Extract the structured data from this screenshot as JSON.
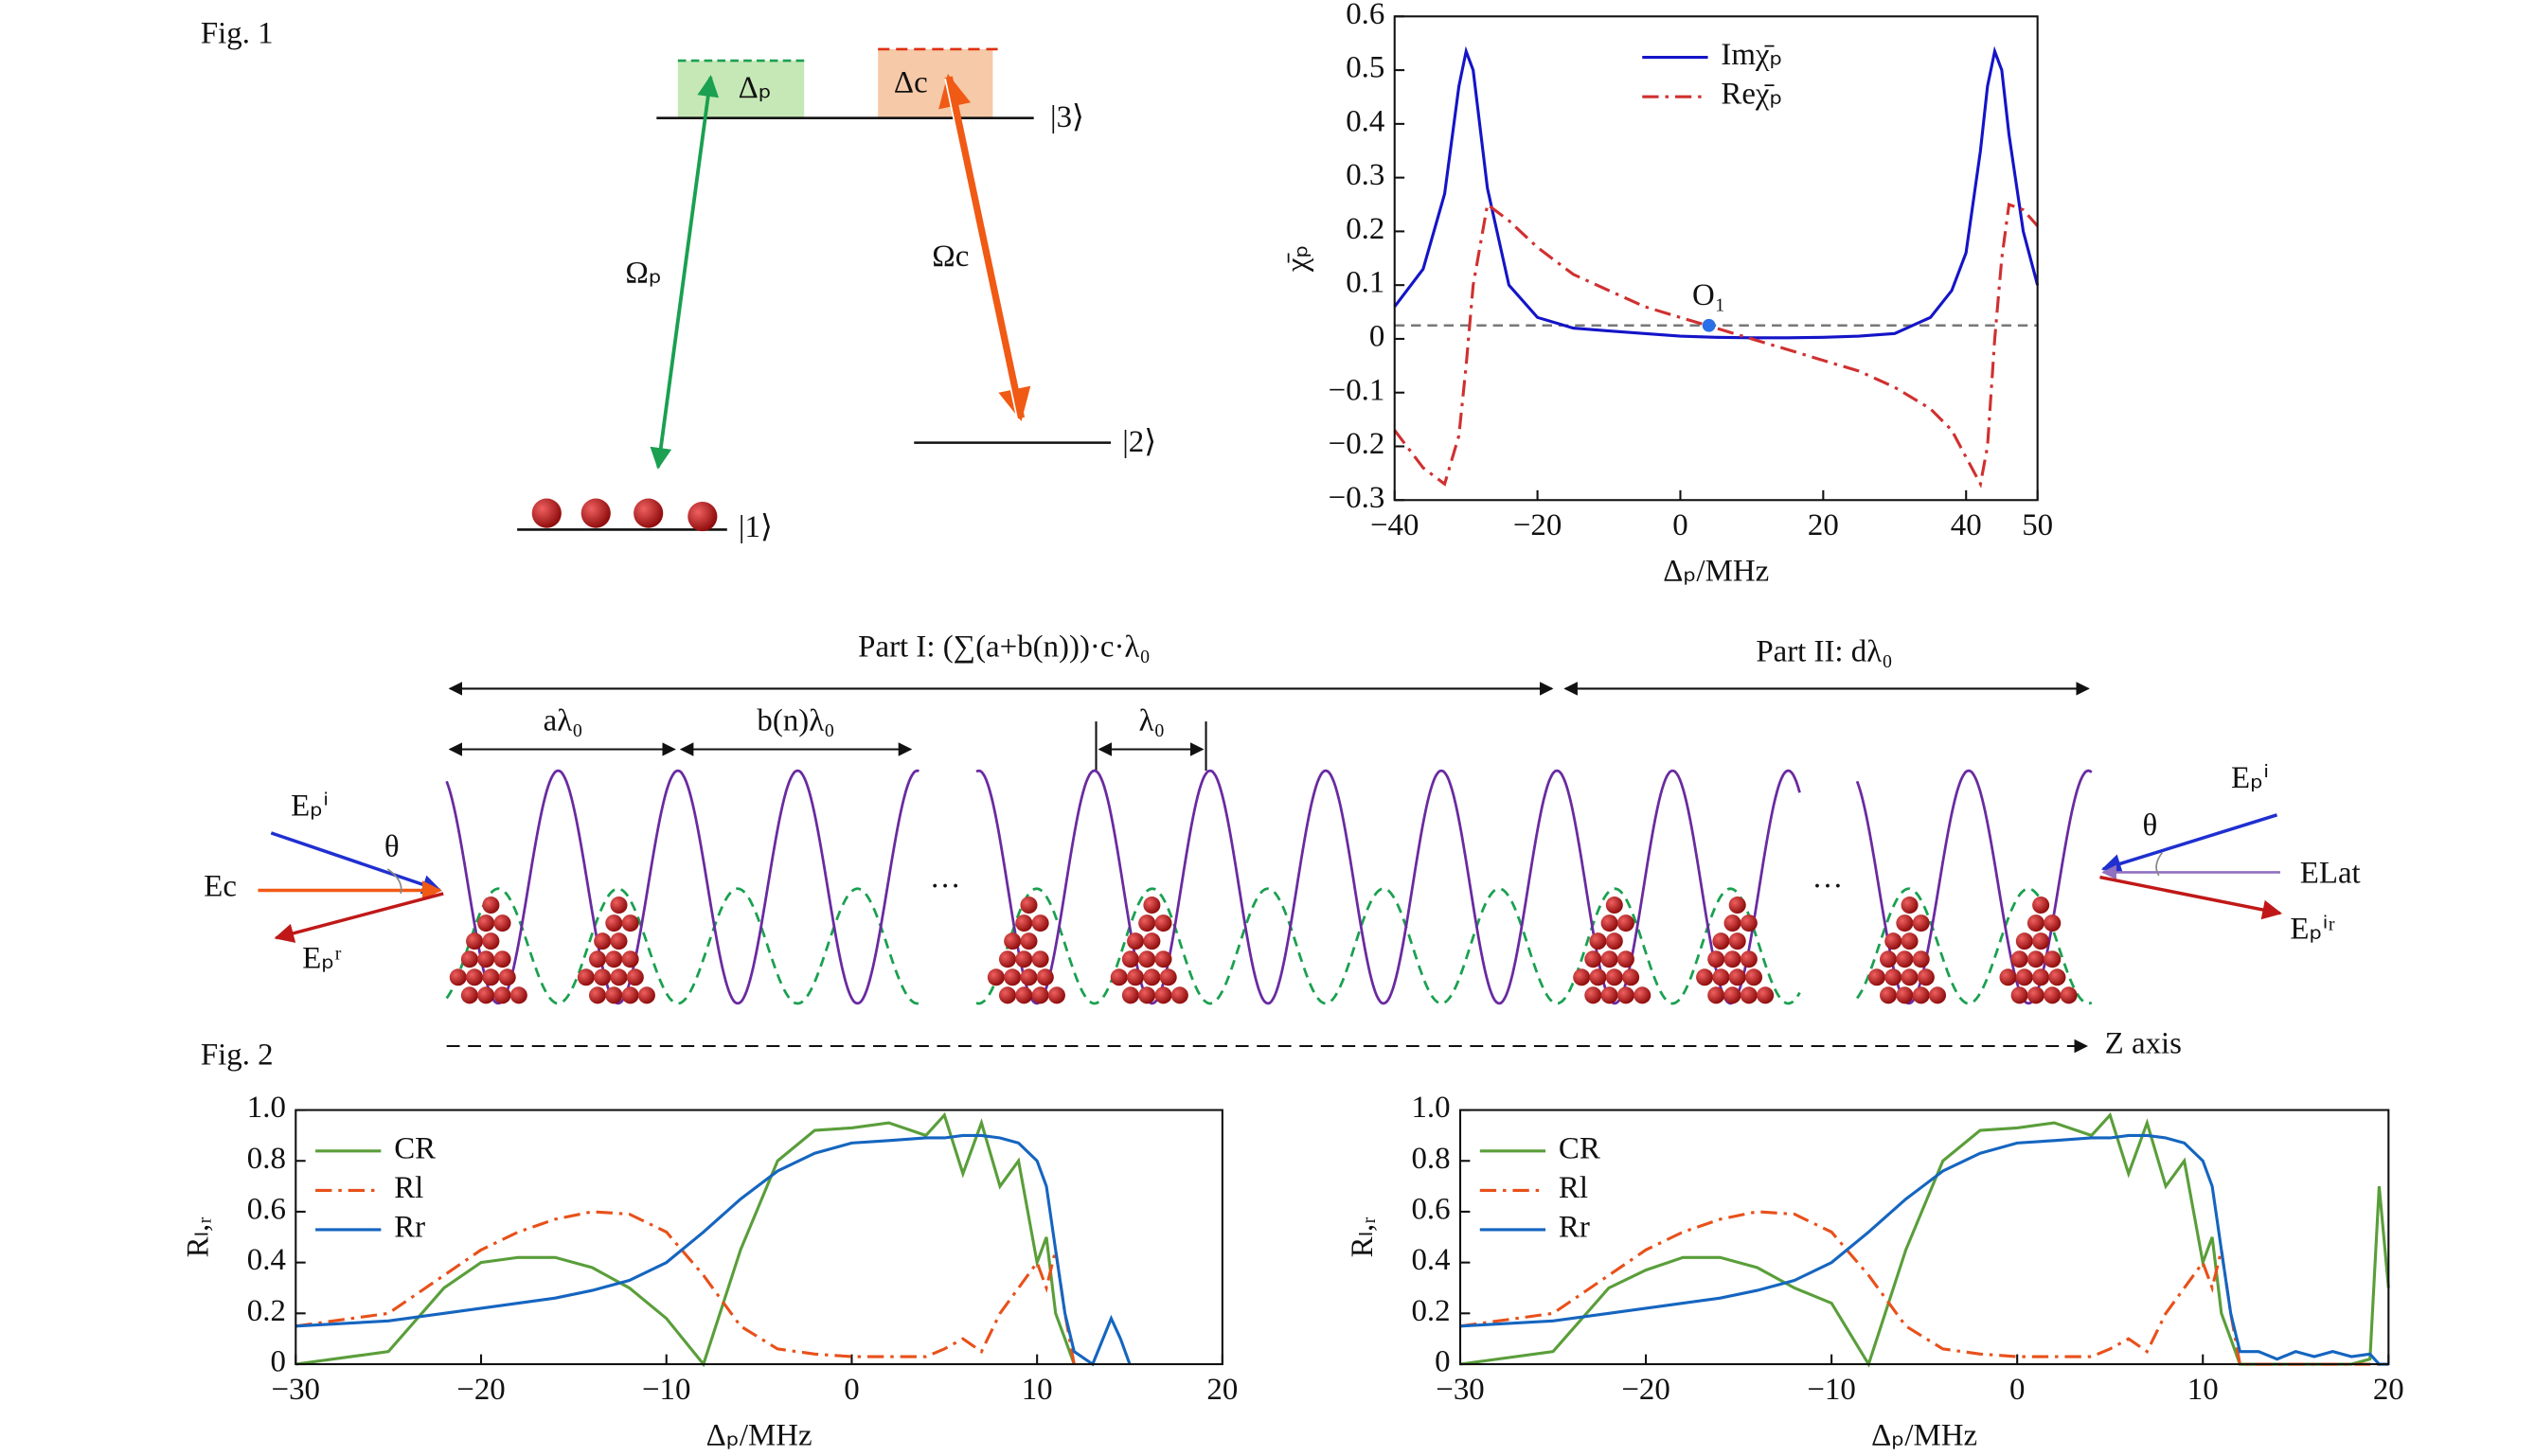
{
  "diagram": {
    "fig1": "Fig. 1",
    "fig2": "Fig. 2",
    "delta_p": "Δₚ",
    "delta_c": "Δc",
    "level3": "|3⟩",
    "level2": "|2⟩",
    "level1": "|1⟩",
    "omega_p": "Ωₚ",
    "omega_c": "Ωc",
    "part1": "Part I: (∑(a+b(n)))·c·λ₀",
    "part2": "Part II: dλ₀",
    "a_lambda": "aλ₀",
    "b_lambda": "b(n)λ₀",
    "lambda": "λ₀",
    "ep_i_left": "Eₚⁱ",
    "ec": "Ec",
    "ep_r": "Eₚʳ",
    "theta_left": "θ",
    "dots1": "···",
    "dots2": "···",
    "ep_i_right": "Eₚⁱ",
    "theta_right": "θ",
    "e_lat": "ELat",
    "ep_ir": "Eₚⁱʳ",
    "z_axis": "Z axis"
  },
  "chart_data": [
    {
      "type": "line",
      "xlabel": "Δₚ/MHz",
      "ylabel": "χ̄ₚ",
      "legend": "upper center",
      "xlim": [
        -40,
        50
      ],
      "ylim": [
        -0.3,
        0.6
      ],
      "xticks": [
        {
          "value": -40,
          "label": "−40"
        },
        {
          "value": -20,
          "label": "−20"
        },
        0,
        20,
        40,
        50
      ],
      "yticks": [
        {
          "value": -0.3,
          "label": "−0.3"
        },
        {
          "value": -0.2,
          "label": "−0.2"
        },
        {
          "value": -0.1,
          "label": "−0.1"
        },
        0,
        0.1,
        0.2,
        0.3,
        0.4,
        0.5,
        0.6
      ],
      "hline": 0.025,
      "annotations": [
        {
          "text": "O₁",
          "x": 4,
          "y": 0.025
        }
      ],
      "x": [
        -40,
        -36,
        -33,
        -31,
        -30,
        -29,
        -27,
        -24,
        -20,
        -15,
        -10,
        -5,
        0,
        5,
        10,
        15,
        20,
        25,
        30,
        35,
        38,
        40,
        42,
        43,
        44,
        45,
        46,
        48,
        50
      ],
      "series": [
        {
          "name": "Imχ̄ₚ",
          "color": "#1414c8",
          "linestyle": "solid",
          "values": [
            0.06,
            0.13,
            0.27,
            0.47,
            0.535,
            0.5,
            0.28,
            0.1,
            0.04,
            0.02,
            0.015,
            0.01,
            0.005,
            0.003,
            0.002,
            0.002,
            0.003,
            0.005,
            0.01,
            0.04,
            0.09,
            0.16,
            0.35,
            0.47,
            0.535,
            0.5,
            0.38,
            0.2,
            0.1
          ]
        },
        {
          "name": "Reχ̄ₚ",
          "color": "#d03030",
          "linestyle": "dashdot",
          "values": [
            -0.17,
            -0.24,
            -0.27,
            -0.18,
            -0.05,
            0.1,
            0.25,
            0.22,
            0.17,
            0.12,
            0.09,
            0.06,
            0.04,
            0.02,
            0.0,
            -0.02,
            -0.04,
            -0.06,
            -0.09,
            -0.13,
            -0.17,
            -0.22,
            -0.27,
            -0.2,
            0.0,
            0.15,
            0.25,
            0.24,
            0.21
          ]
        }
      ]
    },
    {
      "type": "line",
      "xlabel": "Δₚ/MHz",
      "ylabel": "Rₗ,ᵣ",
      "legend": "upper left",
      "xlim": [
        -30,
        20
      ],
      "ylim": [
        0,
        1
      ],
      "xticks": [
        {
          "value": -30,
          "label": "−30"
        },
        {
          "value": -20,
          "label": "−20"
        },
        {
          "value": -10,
          "label": "−10"
        },
        0,
        10,
        20
      ],
      "yticks": [
        0,
        0.2,
        0.4,
        0.6,
        0.8,
        {
          "value": 1,
          "label": "1.0"
        }
      ],
      "x": [
        -30,
        -25,
        -22,
        -20,
        -18,
        -16,
        -14,
        -12,
        -10,
        -8,
        -6,
        -4,
        -2,
        0,
        2,
        4,
        5,
        6,
        7,
        8,
        9,
        10,
        10.5,
        11,
        11.5,
        12,
        13,
        14,
        14.5,
        15
      ],
      "series": [
        {
          "name": "CR",
          "color": "#5a9e3a",
          "linestyle": "solid",
          "values": [
            0,
            0.05,
            0.3,
            0.4,
            0.42,
            0.42,
            0.38,
            0.3,
            0.18,
            0,
            0.45,
            0.8,
            0.92,
            0.93,
            0.95,
            0.9,
            0.98,
            0.75,
            0.95,
            0.7,
            0.8,
            0.4,
            0.5,
            0.2,
            0.1,
            0,
            null,
            null,
            null,
            null
          ]
        },
        {
          "name": "Rl",
          "color": "#e8501a",
          "linestyle": "dashdot",
          "values": [
            0.15,
            0.2,
            0.35,
            0.45,
            0.52,
            0.57,
            0.6,
            0.59,
            0.52,
            0.35,
            0.15,
            0.06,
            0.04,
            0.03,
            0.03,
            0.03,
            0.06,
            0.1,
            0.05,
            0.2,
            0.3,
            0.4,
            0.3,
            0.45,
            0.2,
            0,
            null,
            null,
            null,
            null
          ]
        },
        {
          "name": "Rr",
          "color": "#1565c0",
          "linestyle": "solid",
          "values": [
            0.15,
            0.17,
            0.2,
            0.22,
            0.24,
            0.26,
            0.29,
            0.33,
            0.4,
            0.52,
            0.65,
            0.76,
            0.83,
            0.87,
            0.88,
            0.89,
            0.89,
            0.9,
            0.9,
            0.89,
            0.87,
            0.8,
            0.7,
            0.45,
            0.2,
            0.05,
            0,
            0.18,
            0.1,
            0
          ]
        }
      ]
    },
    {
      "type": "line",
      "xlabel": "Δₚ/MHz",
      "ylabel": "Rₗ,ᵣ",
      "legend": "upper left",
      "xlim": [
        -30,
        20
      ],
      "ylim": [
        0,
        1
      ],
      "xticks": [
        {
          "value": -30,
          "label": "−30"
        },
        {
          "value": -20,
          "label": "−20"
        },
        {
          "value": -10,
          "label": "−10"
        },
        0,
        10,
        20
      ],
      "yticks": [
        0,
        0.2,
        0.4,
        0.6,
        0.8,
        {
          "value": 1,
          "label": "1.0"
        }
      ],
      "x": [
        -30,
        -25,
        -22,
        -20,
        -18,
        -16,
        -14,
        -12,
        -10,
        -8,
        -6,
        -4,
        -2,
        0,
        2,
        4,
        5,
        6,
        7,
        8,
        9,
        10,
        10.5,
        11,
        11.5,
        12,
        13,
        14,
        15,
        16,
        17,
        18,
        19,
        19.5,
        20
      ],
      "series": [
        {
          "name": "CR",
          "color": "#5a9e3a",
          "linestyle": "solid",
          "values": [
            0,
            0.05,
            0.3,
            0.37,
            0.42,
            0.42,
            0.38,
            0.3,
            0.24,
            0,
            0.45,
            0.8,
            0.92,
            0.93,
            0.95,
            0.9,
            0.98,
            0.75,
            0.95,
            0.7,
            0.8,
            0.4,
            0.5,
            0.2,
            0.1,
            0,
            0,
            0,
            0,
            0,
            0,
            0,
            0.02,
            0.7,
            0.3
          ]
        },
        {
          "name": "Rl",
          "color": "#e8501a",
          "linestyle": "dashdot",
          "values": [
            0.15,
            0.2,
            0.35,
            0.45,
            0.52,
            0.57,
            0.6,
            0.59,
            0.52,
            0.35,
            0.15,
            0.06,
            0.04,
            0.03,
            0.03,
            0.03,
            0.06,
            0.1,
            0.05,
            0.2,
            0.3,
            0.4,
            0.3,
            0.45,
            0.2,
            0,
            0,
            0,
            0,
            0,
            0,
            0,
            0,
            0,
            0
          ]
        },
        {
          "name": "Rr",
          "color": "#1565c0",
          "linestyle": "solid",
          "values": [
            0.15,
            0.17,
            0.2,
            0.22,
            0.24,
            0.26,
            0.29,
            0.33,
            0.4,
            0.52,
            0.65,
            0.76,
            0.83,
            0.87,
            0.88,
            0.89,
            0.89,
            0.9,
            0.9,
            0.89,
            0.87,
            0.8,
            0.7,
            0.45,
            0.2,
            0.05,
            0.05,
            0.02,
            0.05,
            0.03,
            0.05,
            0.03,
            0.04,
            0,
            0
          ]
        }
      ]
    }
  ]
}
